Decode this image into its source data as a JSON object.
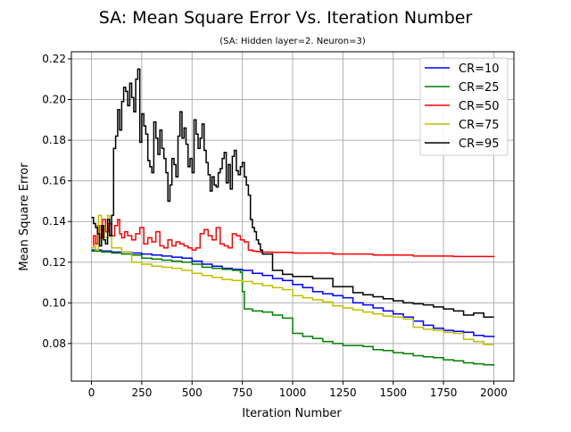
{
  "chart_data": {
    "type": "line",
    "title": "SA: Mean Square Error Vs. Iteration Number",
    "subtitle": "(SA: Hidden layer=2. Neuron=3)",
    "xlabel": "Iteration Number",
    "ylabel": "Mean Square Error",
    "xlim": [
      -100,
      2100
    ],
    "ylim": [
      0.0615,
      0.2235
    ],
    "xticks": [
      "0",
      "250",
      "500",
      "750",
      "1000",
      "1250",
      "1500",
      "1750",
      "2000"
    ],
    "yticks": [
      "0.08",
      "0.10",
      "0.12",
      "0.14",
      "0.16",
      "0.18",
      "0.20",
      "0.22"
    ],
    "grid": true,
    "legend_position": "top-right",
    "series": [
      {
        "name": "CR=10",
        "color": "#0000ff",
        "x": [
          0,
          50,
          100,
          150,
          200,
          250,
          300,
          350,
          400,
          450,
          500,
          550,
          600,
          650,
          700,
          750,
          800,
          850,
          900,
          950,
          1000,
          1050,
          1100,
          1150,
          1200,
          1250,
          1300,
          1350,
          1400,
          1450,
          1500,
          1550,
          1600,
          1650,
          1700,
          1750,
          1800,
          1850,
          1900,
          1950,
          2000
        ],
        "values": [
          0.126,
          0.1255,
          0.125,
          0.125,
          0.1245,
          0.124,
          0.1235,
          0.123,
          0.1225,
          0.122,
          0.1205,
          0.119,
          0.118,
          0.117,
          0.1165,
          0.116,
          0.1145,
          0.1135,
          0.112,
          0.111,
          0.109,
          0.1075,
          0.1055,
          0.1045,
          0.1035,
          0.1025,
          0.1,
          0.099,
          0.0975,
          0.096,
          0.0945,
          0.093,
          0.091,
          0.089,
          0.0875,
          0.0865,
          0.086,
          0.0855,
          0.084,
          0.0835,
          0.083
        ]
      },
      {
        "name": "CR=25",
        "color": "#008000",
        "x": [
          0,
          50,
          100,
          150,
          200,
          250,
          300,
          350,
          400,
          450,
          500,
          550,
          600,
          650,
          700,
          740,
          750,
          760,
          800,
          850,
          900,
          950,
          1000,
          1050,
          1100,
          1150,
          1200,
          1250,
          1300,
          1350,
          1400,
          1450,
          1500,
          1550,
          1600,
          1650,
          1700,
          1750,
          1800,
          1850,
          1900,
          1950,
          2000
        ],
        "values": [
          0.1255,
          0.125,
          0.1245,
          0.124,
          0.1235,
          0.122,
          0.1215,
          0.121,
          0.1205,
          0.12,
          0.119,
          0.1175,
          0.117,
          0.1165,
          0.116,
          0.115,
          0.1055,
          0.097,
          0.096,
          0.0955,
          0.094,
          0.0925,
          0.085,
          0.0835,
          0.0825,
          0.081,
          0.08,
          0.079,
          0.079,
          0.0785,
          0.077,
          0.0765,
          0.0755,
          0.075,
          0.074,
          0.0735,
          0.073,
          0.072,
          0.0715,
          0.0705,
          0.07,
          0.0695,
          0.069
        ]
      },
      {
        "name": "CR=50",
        "color": "#ff0000",
        "x": [
          0,
          10,
          20,
          30,
          40,
          55,
          70,
          85,
          100,
          115,
          130,
          140,
          150,
          165,
          180,
          200,
          220,
          240,
          260,
          280,
          300,
          320,
          340,
          360,
          380,
          400,
          420,
          440,
          460,
          480,
          500,
          520,
          540,
          560,
          580,
          600,
          620,
          640,
          660,
          680,
          700,
          720,
          740,
          760,
          780,
          800,
          820,
          840,
          860,
          880,
          900,
          1000,
          1200,
          1400,
          1600,
          1800,
          2000
        ],
        "values": [
          0.127,
          0.133,
          0.129,
          0.138,
          0.132,
          0.141,
          0.135,
          0.139,
          0.133,
          0.138,
          0.141,
          0.134,
          0.132,
          0.135,
          0.133,
          0.131,
          0.134,
          0.137,
          0.129,
          0.132,
          0.13,
          0.135,
          0.128,
          0.127,
          0.131,
          0.128,
          0.13,
          0.129,
          0.128,
          0.127,
          0.126,
          0.127,
          0.134,
          0.136,
          0.133,
          0.131,
          0.137,
          0.129,
          0.128,
          0.127,
          0.134,
          0.133,
          0.131,
          0.13,
          0.126,
          0.1255,
          0.1253,
          0.125,
          0.125,
          0.125,
          0.1248,
          0.1245,
          0.124,
          0.1235,
          0.123,
          0.1228,
          0.1225
        ]
      },
      {
        "name": "CR=75",
        "color": "#bfbf00",
        "x": [
          0,
          10,
          20,
          35,
          50,
          65,
          80,
          90,
          100,
          150,
          200,
          250,
          300,
          350,
          400,
          450,
          500,
          550,
          600,
          650,
          700,
          750,
          800,
          850,
          900,
          950,
          1000,
          1050,
          1100,
          1150,
          1200,
          1250,
          1300,
          1350,
          1400,
          1450,
          1500,
          1550,
          1600,
          1650,
          1700,
          1750,
          1800,
          1850,
          1900,
          1950,
          2000
        ],
        "values": [
          0.127,
          0.128,
          0.126,
          0.143,
          0.138,
          0.132,
          0.143,
          0.133,
          0.127,
          0.125,
          0.12,
          0.119,
          0.118,
          0.1175,
          0.117,
          0.116,
          0.1145,
          0.1135,
          0.1125,
          0.1115,
          0.111,
          0.1105,
          0.1095,
          0.1085,
          0.1075,
          0.1065,
          0.1035,
          0.1025,
          0.1015,
          0.1005,
          0.0985,
          0.0975,
          0.0965,
          0.0955,
          0.0945,
          0.0935,
          0.093,
          0.092,
          0.088,
          0.087,
          0.0865,
          0.0855,
          0.085,
          0.082,
          0.081,
          0.0795,
          0.0795
        ]
      },
      {
        "name": "CR=95",
        "color": "#000000",
        "x": [
          0,
          10,
          20,
          30,
          40,
          50,
          60,
          70,
          80,
          90,
          100,
          110,
          120,
          130,
          140,
          150,
          160,
          170,
          180,
          190,
          200,
          210,
          220,
          230,
          240,
          250,
          260,
          270,
          280,
          290,
          300,
          310,
          320,
          330,
          340,
          350,
          360,
          370,
          380,
          390,
          400,
          410,
          420,
          430,
          440,
          450,
          460,
          470,
          480,
          490,
          500,
          510,
          520,
          530,
          540,
          550,
          560,
          570,
          580,
          590,
          600,
          610,
          620,
          630,
          640,
          650,
          660,
          670,
          680,
          690,
          700,
          710,
          720,
          730,
          740,
          750,
          760,
          770,
          780,
          790,
          800,
          810,
          820,
          830,
          840,
          850,
          900,
          950,
          1000,
          1050,
          1100,
          1150,
          1200,
          1250,
          1300,
          1350,
          1400,
          1450,
          1500,
          1550,
          1600,
          1650,
          1700,
          1750,
          1800,
          1850,
          1900,
          1950,
          2000
        ],
        "values": [
          0.142,
          0.139,
          0.137,
          0.134,
          0.128,
          0.138,
          0.131,
          0.129,
          0.141,
          0.133,
          0.143,
          0.176,
          0.182,
          0.195,
          0.185,
          0.199,
          0.206,
          0.204,
          0.197,
          0.208,
          0.201,
          0.194,
          0.21,
          0.215,
          0.179,
          0.193,
          0.187,
          0.183,
          0.17,
          0.167,
          0.164,
          0.189,
          0.181,
          0.173,
          0.185,
          0.176,
          0.171,
          0.164,
          0.15,
          0.158,
          0.171,
          0.168,
          0.162,
          0.182,
          0.194,
          0.181,
          0.186,
          0.178,
          0.167,
          0.171,
          0.164,
          0.19,
          0.183,
          0.176,
          0.181,
          0.188,
          0.175,
          0.169,
          0.163,
          0.155,
          0.162,
          0.158,
          0.157,
          0.164,
          0.166,
          0.171,
          0.174,
          0.159,
          0.168,
          0.156,
          0.172,
          0.175,
          0.165,
          0.163,
          0.167,
          0.169,
          0.162,
          0.158,
          0.153,
          0.141,
          0.137,
          0.135,
          0.131,
          0.129,
          0.126,
          0.124,
          0.116,
          0.114,
          0.113,
          0.113,
          0.112,
          0.112,
          0.108,
          0.108,
          0.105,
          0.104,
          0.103,
          0.102,
          0.101,
          0.1,
          0.0995,
          0.099,
          0.098,
          0.097,
          0.096,
          0.094,
          0.095,
          0.093,
          0.093
        ]
      }
    ]
  }
}
